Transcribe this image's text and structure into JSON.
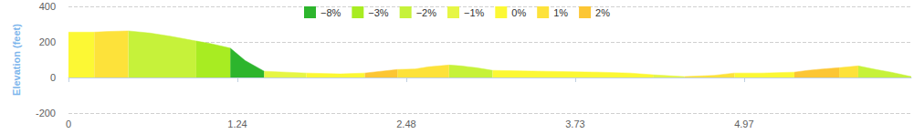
{
  "chart_data": {
    "type": "area",
    "y_label": "Elevation (feet)",
    "x": [
      0,
      0.1,
      0.19,
      0.3,
      0.44,
      0.6,
      0.75,
      0.94,
      1.05,
      1.19,
      1.3,
      1.44,
      1.6,
      1.75,
      2.0,
      2.18,
      2.3,
      2.42,
      2.55,
      2.65,
      2.8,
      2.89,
      3.0,
      3.12,
      3.5,
      3.9,
      4.13,
      4.3,
      4.53,
      4.75,
      4.9,
      5.1,
      5.34,
      5.44,
      5.55,
      5.67,
      5.81,
      5.94,
      6.05,
      6.2
    ],
    "series": [
      {
        "name": "−8%",
        "color": "#2db52d",
        "values": [
          null,
          null,
          null,
          null,
          null,
          null,
          null,
          null,
          null,
          165,
          95,
          35,
          null,
          null,
          null,
          null,
          null,
          null,
          null,
          null,
          null,
          null,
          null,
          null,
          null,
          null,
          null,
          null,
          null,
          null,
          null,
          null,
          null,
          null,
          null,
          null,
          null,
          null,
          null,
          null
        ]
      },
      {
        "name": "−3%",
        "color": "#a8ec22",
        "values": [
          null,
          null,
          null,
          null,
          null,
          null,
          null,
          205,
          190,
          165,
          null,
          null,
          null,
          null,
          null,
          null,
          null,
          null,
          null,
          null,
          null,
          null,
          null,
          null,
          null,
          null,
          null,
          null,
          null,
          null,
          null,
          null,
          null,
          null,
          null,
          null,
          null,
          null,
          null,
          null
        ]
      },
      {
        "name": "−2%",
        "color": "#c6f23a",
        "values": [
          null,
          null,
          null,
          null,
          262,
          250,
          232,
          205,
          null,
          null,
          null,
          null,
          null,
          null,
          null,
          null,
          null,
          null,
          null,
          null,
          70,
          65,
          55,
          40,
          null,
          null,
          null,
          null,
          null,
          null,
          null,
          null,
          null,
          null,
          null,
          null,
          65,
          45,
          30,
          5
        ]
      },
      {
        "name": "−1%",
        "color": "#e6f645",
        "values": [
          null,
          null,
          null,
          null,
          null,
          null,
          null,
          null,
          null,
          null,
          null,
          35,
          30,
          25,
          null,
          null,
          null,
          null,
          null,
          null,
          null,
          null,
          null,
          null,
          null,
          null,
          null,
          15,
          5,
          null,
          null,
          null,
          null,
          null,
          null,
          null,
          null,
          null,
          null,
          null
        ]
      },
      {
        "name": "0%",
        "color": "#fcf834",
        "values": [
          255,
          255,
          255,
          null,
          null,
          null,
          null,
          null,
          null,
          null,
          null,
          null,
          null,
          25,
          20,
          25,
          null,
          null,
          null,
          null,
          null,
          null,
          null,
          40,
          35,
          30,
          25,
          15,
          null,
          null,
          25,
          25,
          30,
          null,
          null,
          null,
          null,
          null,
          null,
          null
        ]
      },
      {
        "name": "1%",
        "color": "#fde23a",
        "values": [
          null,
          null,
          255,
          259,
          262,
          null,
          null,
          null,
          null,
          null,
          null,
          null,
          null,
          null,
          null,
          null,
          null,
          45,
          48,
          60,
          70,
          null,
          null,
          null,
          null,
          null,
          null,
          null,
          5,
          12,
          25,
          null,
          null,
          null,
          null,
          55,
          65,
          null,
          null,
          null
        ]
      },
      {
        "name": "2%",
        "color": "#fcc634",
        "values": [
          null,
          null,
          null,
          null,
          null,
          null,
          null,
          null,
          null,
          null,
          null,
          null,
          null,
          null,
          null,
          25,
          35,
          45,
          null,
          null,
          null,
          null,
          null,
          null,
          null,
          null,
          null,
          null,
          null,
          null,
          null,
          null,
          30,
          40,
          48,
          55,
          null,
          null,
          null,
          null
        ]
      }
    ],
    "xlim": [
      0,
      6.2
    ],
    "xticks": [
      0,
      {
        "value": 1.2425,
        "label": "1.24"
      },
      {
        "value": 2.485,
        "label": "2.48"
      },
      {
        "value": 3.7275,
        "label": "3.73"
      },
      4.97
    ],
    "ylim": [
      -200,
      400
    ],
    "yticks": [
      -200,
      0,
      200,
      400
    ],
    "grid": true,
    "legend": "top"
  }
}
